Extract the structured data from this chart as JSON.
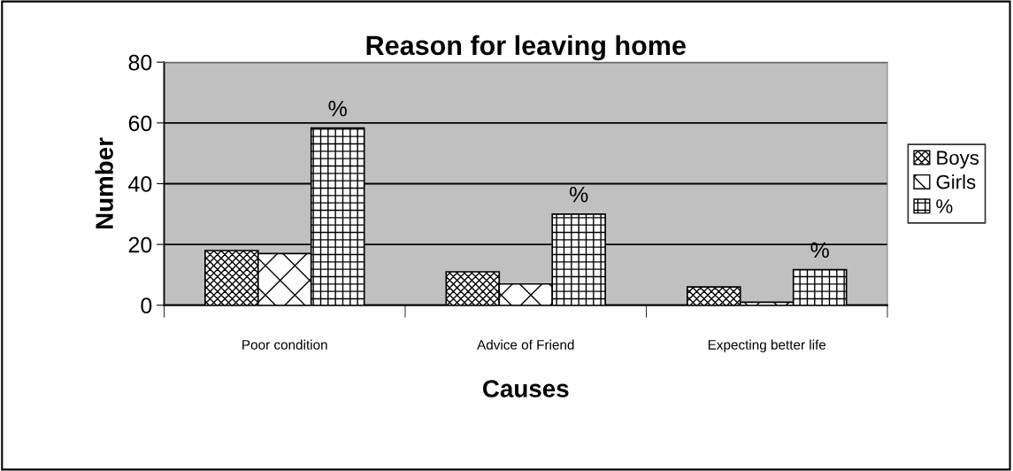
{
  "chart_data": {
    "type": "bar",
    "title": "Reason for leaving home",
    "xlabel": "Causes",
    "ylabel": "Number",
    "categories": [
      "Poor condition",
      "Advice of Friend",
      "Expecting better life"
    ],
    "series": [
      {
        "name": "Boys",
        "color": "#000000",
        "values": [
          18,
          11,
          6
        ]
      },
      {
        "name": "Girls",
        "color": "#000000",
        "values": [
          17,
          7,
          1
        ]
      },
      {
        "name": "%",
        "color": "#000000",
        "values": [
          58.3,
          30,
          11.7
        ]
      }
    ],
    "annotations": [
      "%",
      "%",
      "%"
    ],
    "ylim": [
      0,
      80
    ],
    "yticks": [
      0,
      20,
      40,
      60,
      80
    ],
    "grid": "y",
    "legend": "right"
  }
}
